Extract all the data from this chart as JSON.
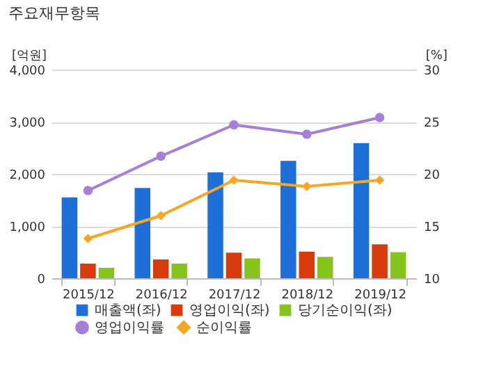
{
  "chart_data": {
    "type": "bar",
    "title": "주요재무항목",
    "ylabel": "[억원]",
    "y2label": "[%]",
    "categories": [
      "2015/12",
      "2016/12",
      "2017/12",
      "2018/12",
      "2019/12"
    ],
    "series": [
      {
        "name": "매출액(좌)",
        "color": "#1f6fd8",
        "values": [
          1550,
          1730,
          2030,
          2250,
          2590
        ]
      },
      {
        "name": "영업이익(좌)",
        "color": "#d83a0c",
        "values": [
          280,
          360,
          490,
          510,
          650
        ]
      },
      {
        "name": "당기순이익(좌)",
        "color": "#86c41c",
        "values": [
          200,
          280,
          380,
          410,
          500
        ]
      },
      {
        "name": "영업이익률",
        "type": "line",
        "axis": "y2",
        "marker": "circle",
        "color": "#a57fd8",
        "values": [
          18.4,
          21.7,
          24.7,
          23.8,
          25.4
        ]
      },
      {
        "name": "순이익률",
        "type": "line",
        "axis": "y2",
        "marker": "diamond",
        "color": "#f5a623",
        "values": [
          13.8,
          16.0,
          19.4,
          18.8,
          19.4
        ]
      }
    ],
    "ylim": [
      0,
      4000
    ],
    "yticks": [
      0,
      {
        "value": 1000,
        "label": "1,000"
      },
      {
        "value": 2000,
        "label": "2,000"
      },
      {
        "value": 3000,
        "label": "3,000"
      },
      {
        "value": 4000,
        "label": "4,000"
      }
    ],
    "y2lim": [
      10,
      30
    ],
    "y2ticks": [
      10,
      15,
      20,
      25,
      30
    ],
    "grid": "y",
    "legend": "bottom"
  }
}
